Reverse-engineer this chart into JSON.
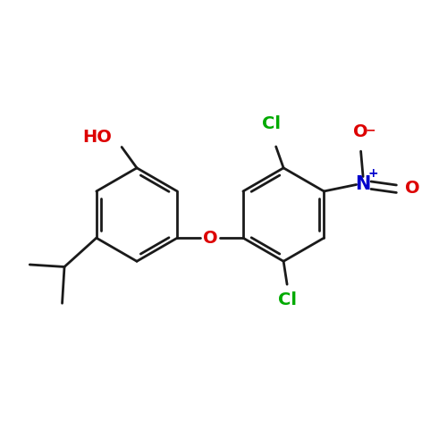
{
  "bg_color": "#ffffff",
  "bond_color": "#1a1a1a",
  "bond_lw": 2.0,
  "figsize": [
    5.0,
    5.0
  ],
  "dpi": 100,
  "colors": {
    "O": "#dd0000",
    "N": "#0000cc",
    "Cl": "#00aa00",
    "bond": "#1a1a1a"
  },
  "font_size": 14
}
